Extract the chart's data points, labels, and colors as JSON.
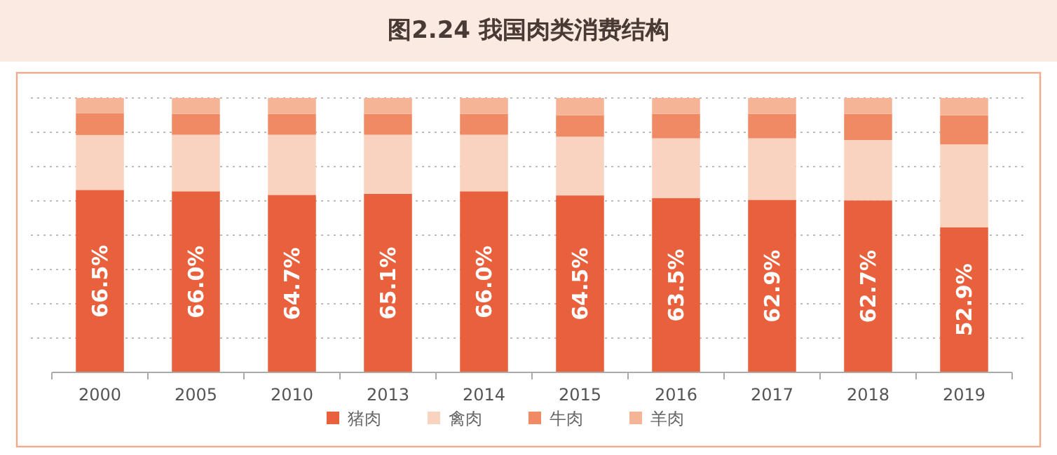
{
  "chart_data": {
    "type": "bar",
    "title": "图2.24 我国肉类消费结构",
    "stacked": true,
    "grid": "y",
    "legend": "bottom",
    "tick_labels": "x",
    "ylim": [
      0,
      100
    ],
    "yticks": [
      {
        "value": 0,
        "label": null
      },
      {
        "value": 12.5,
        "label": null
      },
      {
        "value": 25,
        "label": null
      },
      {
        "value": 37.5,
        "label": null
      },
      {
        "value": 50,
        "label": null
      },
      {
        "value": 62.5,
        "label": null
      },
      {
        "value": 75,
        "label": null
      },
      {
        "value": 87.5,
        "label": null
      },
      {
        "value": 100,
        "label": null
      }
    ],
    "categories": [
      "2000",
      "2005",
      "2010",
      "2013",
      "2014",
      "2015",
      "2016",
      "2017",
      "2018",
      "2019"
    ],
    "series": [
      {
        "name": "猪肉",
        "color": "#e8603c",
        "values": [
          66.5,
          66.0,
          64.7,
          65.1,
          66.0,
          64.5,
          63.5,
          62.9,
          62.7,
          52.9
        ],
        "value_labels": [
          "66.5%",
          "66.0%",
          "64.7%",
          "65.1%",
          "66.0%",
          "64.5%",
          "63.5%",
          "62.9%",
          "62.7%",
          "52.9%"
        ]
      },
      {
        "name": "禽肉",
        "color": "#f9d3bf",
        "values": [
          20.0,
          20.6,
          21.9,
          21.5,
          20.6,
          21.4,
          21.8,
          22.4,
          22.0,
          30.2
        ]
      },
      {
        "name": "牛肉",
        "color": "#f08a65",
        "values": [
          8.0,
          7.6,
          7.6,
          7.6,
          7.6,
          7.8,
          8.9,
          8.9,
          9.5,
          10.6
        ]
      },
      {
        "name": "羊肉",
        "color": "#f6b497",
        "values": [
          5.5,
          5.8,
          5.8,
          5.8,
          5.8,
          6.3,
          5.8,
          5.8,
          5.8,
          6.3
        ]
      }
    ]
  }
}
